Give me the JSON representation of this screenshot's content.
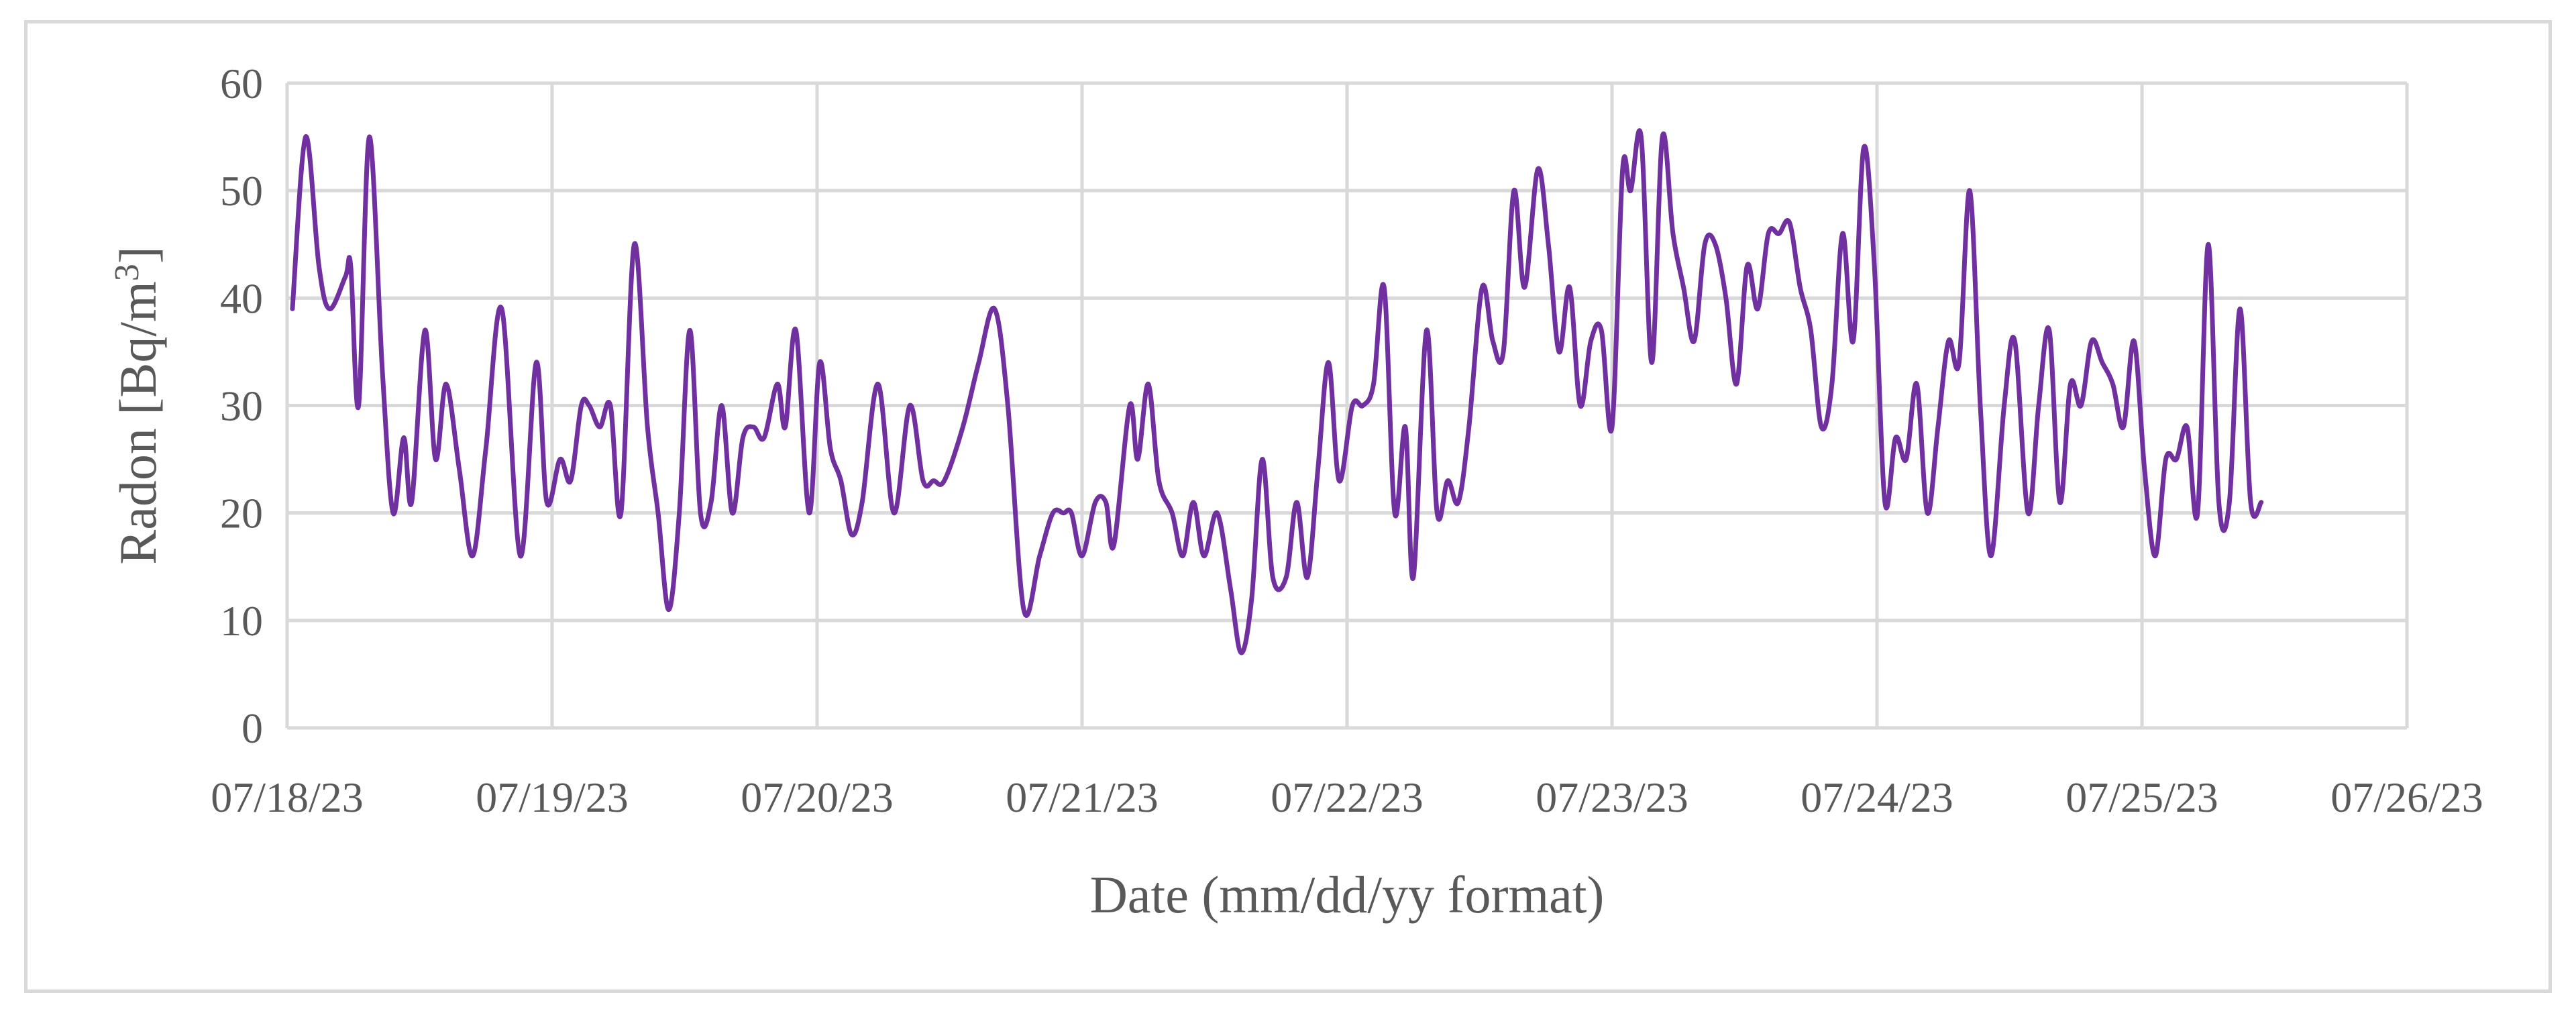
{
  "chart_data": {
    "type": "line",
    "title": "",
    "xlabel": "Date (mm/dd/yy format)",
    "ylabel": {
      "text": "Radon [Bq/m",
      "superscript": "3",
      "suffix": "]"
    },
    "ylim": [
      0,
      60
    ],
    "y_ticks": [
      "0",
      "10",
      "20",
      "30",
      "40",
      "50",
      "60"
    ],
    "x_tick_labels": [
      "07/18/23",
      "07/19/23",
      "07/20/23",
      "07/21/23",
      "07/22/23",
      "07/23/23",
      "07/24/23",
      "07/25/23",
      "07/26/23"
    ],
    "xlim_days": [
      0,
      8
    ],
    "grid": true,
    "legend": "none",
    "series": [
      {
        "color": "#7030a0",
        "points": [
          [
            0.02,
            39
          ],
          [
            0.07,
            55
          ],
          [
            0.12,
            43
          ],
          [
            0.16,
            39
          ],
          [
            0.22,
            42
          ],
          [
            0.24,
            43
          ],
          [
            0.27,
            30
          ],
          [
            0.31,
            55
          ],
          [
            0.36,
            33
          ],
          [
            0.4,
            20
          ],
          [
            0.44,
            27
          ],
          [
            0.47,
            21
          ],
          [
            0.52,
            37
          ],
          [
            0.56,
            25
          ],
          [
            0.6,
            32
          ],
          [
            0.65,
            24
          ],
          [
            0.7,
            16
          ],
          [
            0.75,
            26
          ],
          [
            0.81,
            39
          ],
          [
            0.88,
            16
          ],
          [
            0.94,
            34
          ],
          [
            0.98,
            21
          ],
          [
            1.03,
            25
          ],
          [
            1.07,
            23
          ],
          [
            1.11,
            30
          ],
          [
            1.14,
            30
          ],
          [
            1.18,
            28
          ],
          [
            1.22,
            30
          ],
          [
            1.26,
            20
          ],
          [
            1.31,
            45
          ],
          [
            1.36,
            28
          ],
          [
            1.4,
            20
          ],
          [
            1.44,
            11
          ],
          [
            1.48,
            20
          ],
          [
            1.52,
            37
          ],
          [
            1.56,
            20
          ],
          [
            1.6,
            21
          ],
          [
            1.64,
            30
          ],
          [
            1.68,
            20
          ],
          [
            1.72,
            27
          ],
          [
            1.76,
            28
          ],
          [
            1.8,
            27
          ],
          [
            1.85,
            32
          ],
          [
            1.88,
            28
          ],
          [
            1.92,
            37
          ],
          [
            1.97,
            20
          ],
          [
            2.01,
            34
          ],
          [
            2.05,
            26
          ],
          [
            2.09,
            23
          ],
          [
            2.13,
            18
          ],
          [
            2.17,
            21
          ],
          [
            2.23,
            32
          ],
          [
            2.29,
            20
          ],
          [
            2.35,
            30
          ],
          [
            2.4,
            23
          ],
          [
            2.44,
            23
          ],
          [
            2.48,
            23
          ],
          [
            2.55,
            28
          ],
          [
            2.61,
            34
          ],
          [
            2.67,
            39
          ],
          [
            2.72,
            30
          ],
          [
            2.78,
            11
          ],
          [
            2.84,
            16
          ],
          [
            2.89,
            20
          ],
          [
            2.93,
            20
          ],
          [
            2.96,
            20
          ],
          [
            3.0,
            16
          ],
          [
            3.05,
            21
          ],
          [
            3.09,
            21
          ],
          [
            3.12,
            17
          ],
          [
            3.18,
            30
          ],
          [
            3.21,
            25
          ],
          [
            3.25,
            32
          ],
          [
            3.29,
            23
          ],
          [
            3.34,
            20
          ],
          [
            3.38,
            16
          ],
          [
            3.42,
            21
          ],
          [
            3.46,
            16
          ],
          [
            3.51,
            20
          ],
          [
            3.56,
            13
          ],
          [
            3.6,
            7
          ],
          [
            3.64,
            12
          ],
          [
            3.68,
            25
          ],
          [
            3.72,
            14
          ],
          [
            3.77,
            14
          ],
          [
            3.81,
            21
          ],
          [
            3.85,
            14
          ],
          [
            3.89,
            24
          ],
          [
            3.93,
            34
          ],
          [
            3.97,
            23
          ],
          [
            4.02,
            30
          ],
          [
            4.06,
            30
          ],
          [
            4.1,
            32
          ],
          [
            4.14,
            41
          ],
          [
            4.18,
            20
          ],
          [
            4.22,
            28
          ],
          [
            4.25,
            14
          ],
          [
            4.3,
            37
          ],
          [
            4.34,
            20
          ],
          [
            4.38,
            23
          ],
          [
            4.42,
            21
          ],
          [
            4.46,
            28
          ],
          [
            4.51,
            41
          ],
          [
            4.55,
            36
          ],
          [
            4.59,
            35
          ],
          [
            4.63,
            50
          ],
          [
            4.67,
            41
          ],
          [
            4.72,
            52
          ],
          [
            4.76,
            45
          ],
          [
            4.8,
            35
          ],
          [
            4.84,
            41
          ],
          [
            4.88,
            30
          ],
          [
            4.92,
            36
          ],
          [
            4.96,
            37
          ],
          [
            5.0,
            28
          ],
          [
            5.04,
            52
          ],
          [
            5.07,
            50
          ],
          [
            5.11,
            55
          ],
          [
            5.15,
            34
          ],
          [
            5.19,
            55
          ],
          [
            5.23,
            46
          ],
          [
            5.27,
            41
          ],
          [
            5.31,
            36
          ],
          [
            5.35,
            45
          ],
          [
            5.39,
            45
          ],
          [
            5.43,
            40
          ],
          [
            5.47,
            32
          ],
          [
            5.51,
            43
          ],
          [
            5.55,
            39
          ],
          [
            5.59,
            46
          ],
          [
            5.63,
            46
          ],
          [
            5.67,
            47
          ],
          [
            5.71,
            41
          ],
          [
            5.75,
            37
          ],
          [
            5.79,
            28
          ],
          [
            5.83,
            32
          ],
          [
            5.87,
            46
          ],
          [
            5.91,
            36
          ],
          [
            5.95,
            54
          ],
          [
            5.99,
            43
          ],
          [
            6.03,
            21
          ],
          [
            6.07,
            27
          ],
          [
            6.11,
            25
          ],
          [
            6.15,
            32
          ],
          [
            6.19,
            20
          ],
          [
            6.23,
            28
          ],
          [
            6.27,
            36
          ],
          [
            6.31,
            34
          ],
          [
            6.35,
            50
          ],
          [
            6.39,
            30
          ],
          [
            6.43,
            16
          ],
          [
            6.48,
            30
          ],
          [
            6.52,
            36
          ],
          [
            6.57,
            20
          ],
          [
            6.61,
            30
          ],
          [
            6.65,
            37
          ],
          [
            6.69,
            21
          ],
          [
            6.73,
            32
          ],
          [
            6.77,
            30
          ],
          [
            6.81,
            36
          ],
          [
            6.85,
            34
          ],
          [
            6.89,
            32
          ],
          [
            6.93,
            28
          ],
          [
            6.97,
            36
          ],
          [
            7.01,
            24
          ],
          [
            7.05,
            16
          ],
          [
            7.09,
            25
          ],
          [
            7.13,
            25
          ],
          [
            7.17,
            28
          ],
          [
            7.21,
            20
          ],
          [
            7.25,
            45
          ],
          [
            7.29,
            21
          ],
          [
            7.33,
            21
          ],
          [
            7.37,
            39
          ],
          [
            7.41,
            21
          ],
          [
            7.45,
            21
          ]
        ]
      }
    ]
  }
}
